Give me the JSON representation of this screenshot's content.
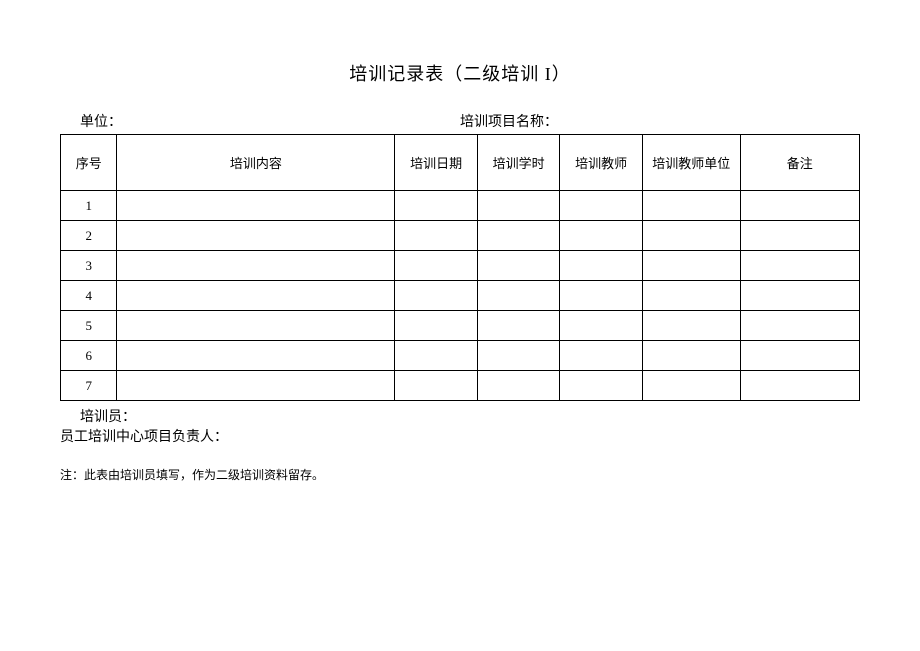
{
  "title": "培训记录表（二级培训 I）",
  "header": {
    "unit_label": "单位：",
    "project_label": "培训项目名称："
  },
  "table": {
    "columns": [
      {
        "label": "序号",
        "class": "col-seq"
      },
      {
        "label": "培训内容",
        "class": "col-content"
      },
      {
        "label": "培训日期",
        "class": "col-date"
      },
      {
        "label": "培训学时",
        "class": "col-hours"
      },
      {
        "label": "培训教师",
        "class": "col-teacher"
      },
      {
        "label": "培训教师单位",
        "class": "col-unit"
      },
      {
        "label": "备注",
        "class": "col-remark"
      }
    ],
    "rows": [
      {
        "seq": "1",
        "content": "",
        "date": "",
        "hours": "",
        "teacher": "",
        "unit": "",
        "remark": ""
      },
      {
        "seq": "2",
        "content": "",
        "date": "",
        "hours": "",
        "teacher": "",
        "unit": "",
        "remark": ""
      },
      {
        "seq": "3",
        "content": "",
        "date": "",
        "hours": "",
        "teacher": "",
        "unit": "",
        "remark": ""
      },
      {
        "seq": "4",
        "content": "",
        "date": "",
        "hours": "",
        "teacher": "",
        "unit": "",
        "remark": ""
      },
      {
        "seq": "5",
        "content": "",
        "date": "",
        "hours": "",
        "teacher": "",
        "unit": "",
        "remark": ""
      },
      {
        "seq": "6",
        "content": "",
        "date": "",
        "hours": "",
        "teacher": "",
        "unit": "",
        "remark": ""
      },
      {
        "seq": "7",
        "content": "",
        "date": "",
        "hours": "",
        "teacher": "",
        "unit": "",
        "remark": ""
      }
    ]
  },
  "footer": {
    "trainer_label": "培训员：",
    "manager_label": "员工培训中心项目负责人："
  },
  "note": "注：此表由培训员填写，作为二级培训资料留存。"
}
